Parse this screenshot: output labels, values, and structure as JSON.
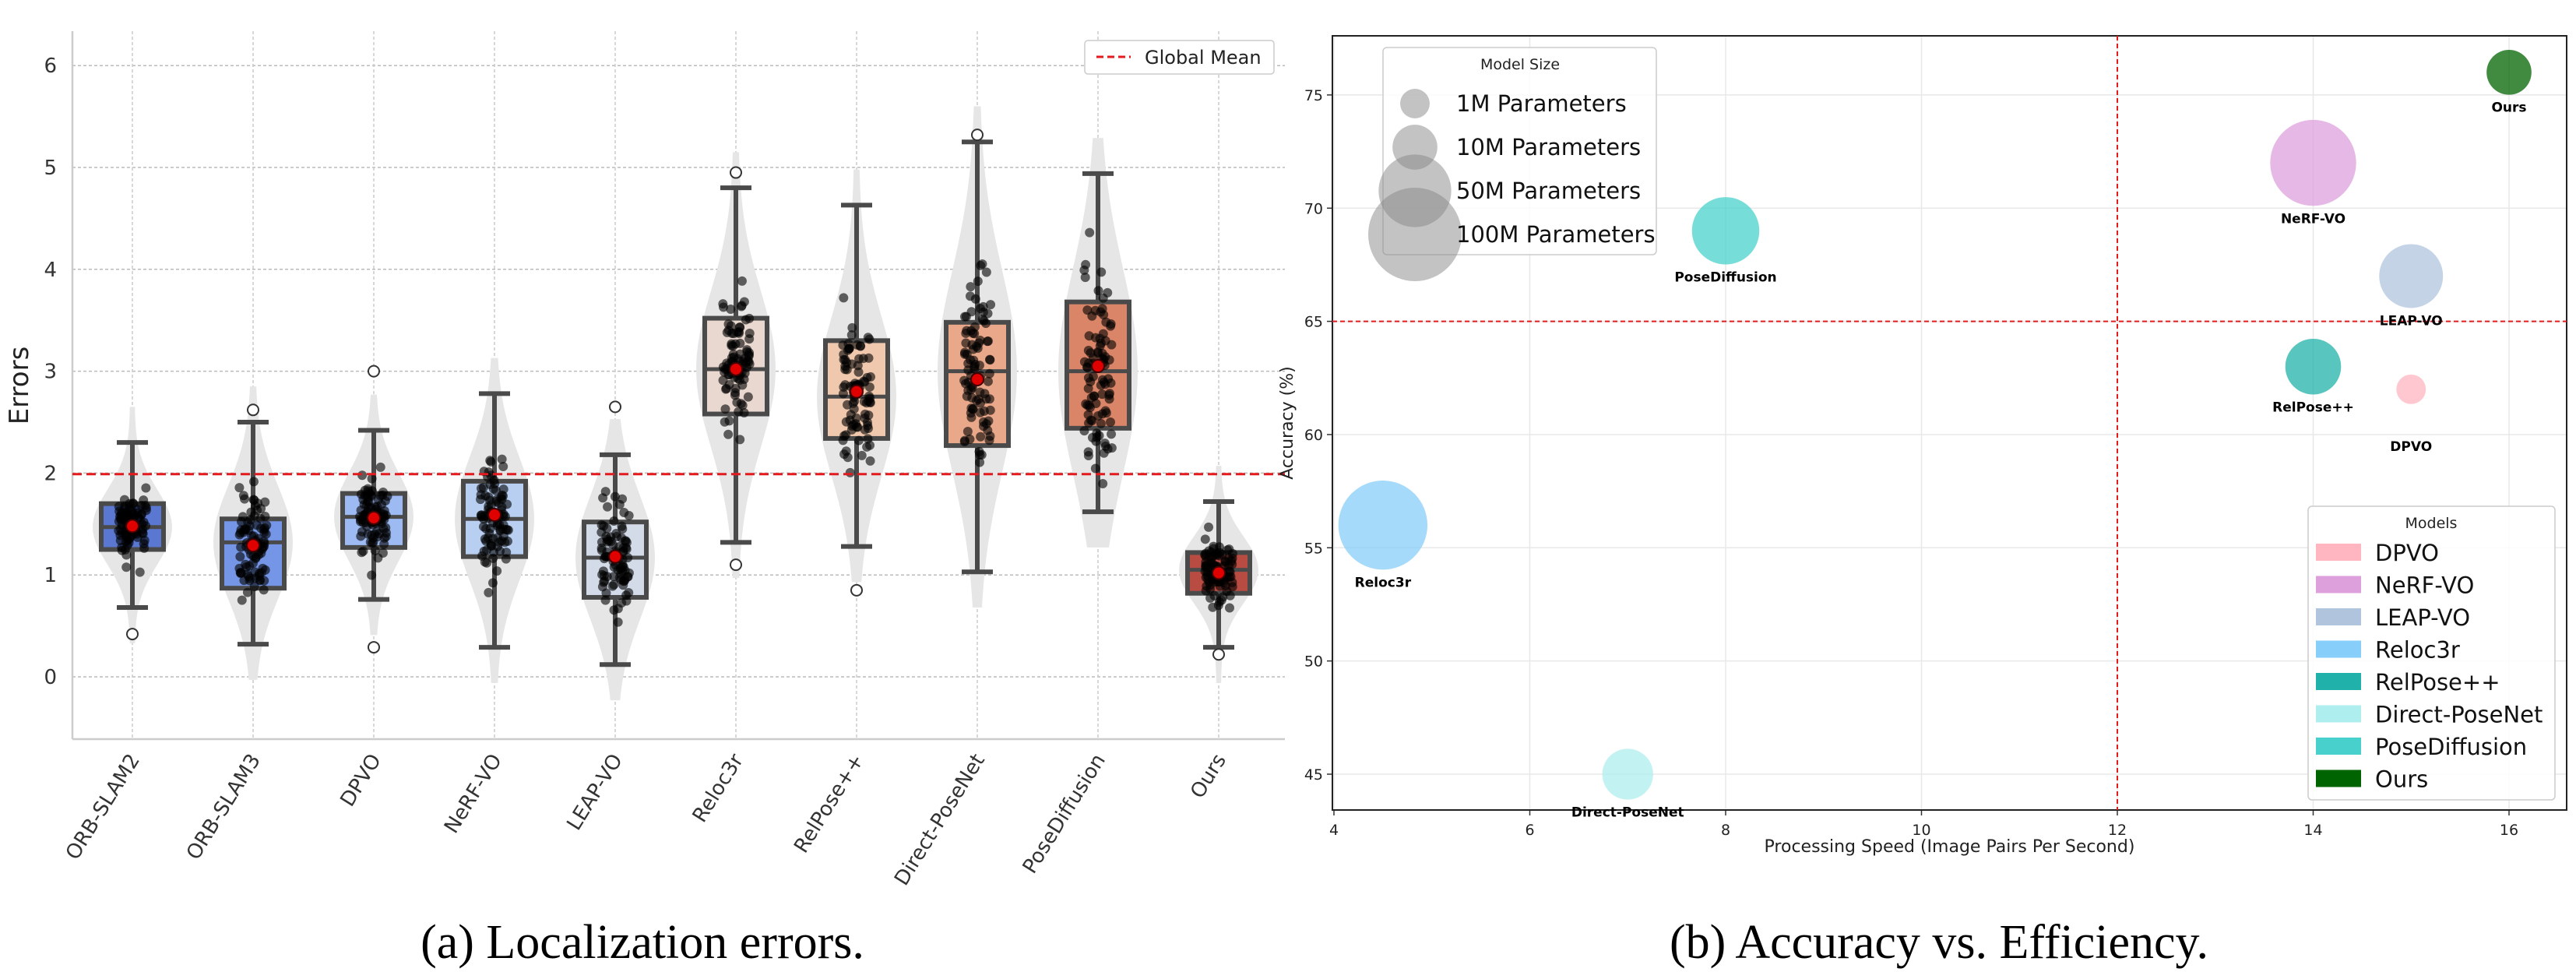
{
  "chart_data": [
    {
      "type": "box",
      "caption": "(a) Localization errors.",
      "ylabel": "Errors",
      "ylim": [
        -0.6,
        6.35
      ],
      "yticks": [
        "0",
        "1",
        "2",
        "3",
        "4",
        "5",
        "6"
      ],
      "grid": true,
      "legend": {
        "placement": "top-right",
        "entries": [
          "Global Mean"
        ]
      },
      "global_mean": 1.99,
      "global_mean_color": "#e41a1c",
      "categories": [
        "ORB-SLAM2",
        "ORB-SLAM3",
        "DPVO",
        "NeRF-VO",
        "LEAP-VO",
        "Reloc3r",
        "RelPose++",
        "Direct-PoseNet",
        "PoseDiffusion",
        "Ours"
      ],
      "colors": [
        "#5a78d2",
        "#7596e6",
        "#9dbaf2",
        "#b9cff2",
        "#d3dae8",
        "#e9d8cf",
        "#f0c8ae",
        "#eaa88a",
        "#da8468",
        "#b84c42"
      ],
      "boxes": [
        {
          "whisker_low": 0.68,
          "q1": 1.25,
          "median": 1.47,
          "q3": 1.7,
          "whisker_high": 2.3,
          "mean": 1.48,
          "outliers": [
            0.42
          ]
        },
        {
          "whisker_low": 0.32,
          "q1": 0.87,
          "median": 1.32,
          "q3": 1.55,
          "whisker_high": 2.5,
          "mean": 1.29,
          "outliers": [
            2.62
          ]
        },
        {
          "whisker_low": 0.76,
          "q1": 1.27,
          "median": 1.57,
          "q3": 1.8,
          "whisker_high": 2.42,
          "mean": 1.56,
          "outliers": [
            3.0,
            0.29
          ]
        },
        {
          "whisker_low": 0.29,
          "q1": 1.18,
          "median": 1.55,
          "q3": 1.92,
          "whisker_high": 2.78,
          "mean": 1.59,
          "outliers": []
        },
        {
          "whisker_low": 0.12,
          "q1": 0.78,
          "median": 1.17,
          "q3": 1.52,
          "whisker_high": 2.18,
          "mean": 1.18,
          "outliers": [
            2.65
          ]
        },
        {
          "whisker_low": 1.32,
          "q1": 2.58,
          "median": 3.02,
          "q3": 3.52,
          "whisker_high": 4.8,
          "mean": 3.02,
          "outliers": [
            4.95,
            1.1
          ]
        },
        {
          "whisker_low": 1.28,
          "q1": 2.34,
          "median": 2.75,
          "q3": 3.3,
          "whisker_high": 4.63,
          "mean": 2.8,
          "outliers": [
            0.85
          ]
        },
        {
          "whisker_low": 1.03,
          "q1": 2.27,
          "median": 3.0,
          "q3": 3.48,
          "whisker_high": 5.25,
          "mean": 2.92,
          "outliers": [
            5.32
          ]
        },
        {
          "whisker_low": 1.62,
          "q1": 2.44,
          "median": 3.0,
          "q3": 3.68,
          "whisker_high": 4.94,
          "mean": 3.05,
          "outliers": []
        },
        {
          "whisker_low": 0.29,
          "q1": 0.82,
          "median": 1.05,
          "q3": 1.22,
          "whisker_high": 1.72,
          "mean": 1.02,
          "outliers": [
            0.22
          ]
        }
      ]
    },
    {
      "type": "scatter",
      "caption": "(b) Accuracy vs. Efficiency.",
      "xlabel": "Processing Speed (Image Pairs Per Second)",
      "ylabel": "Accuracy (%)",
      "xlim": [
        3.98,
        16.6
      ],
      "ylim": [
        43.4,
        77.6
      ],
      "xticks": [
        "4",
        "6",
        "8",
        "10",
        "12",
        "14",
        "16"
      ],
      "yticks": [
        "45",
        "50",
        "55",
        "60",
        "65",
        "70",
        "75"
      ],
      "grid": true,
      "reference_lines": {
        "x": 12,
        "y": 65,
        "color": "#e41a1c"
      },
      "size_legend": {
        "title": "Model Size",
        "placement": "top-left",
        "entries": [
          {
            "label": "1M Parameters",
            "params_m": 1
          },
          {
            "label": "10M Parameters",
            "params_m": 10
          },
          {
            "label": "50M Parameters",
            "params_m": 50
          },
          {
            "label": "100M Parameters",
            "params_m": 100
          }
        ]
      },
      "color_legend": {
        "title": "Models",
        "placement": "lower-right"
      },
      "points": [
        {
          "name": "DPVO",
          "x": 15,
          "y": 62,
          "params_m": 1,
          "color": "#ffb6c1"
        },
        {
          "name": "NeRF-VO",
          "x": 14,
          "y": 72,
          "params_m": 80,
          "color": "#dda0dd"
        },
        {
          "name": "LEAP-VO",
          "x": 15,
          "y": 67,
          "params_m": 34,
          "color": "#b0c4de"
        },
        {
          "name": "Reloc3r",
          "x": 4.5,
          "y": 56,
          "params_m": 88,
          "color": "#87cefa"
        },
        {
          "name": "RelPose++",
          "x": 14,
          "y": 63,
          "params_m": 22,
          "color": "#20b2aa"
        },
        {
          "name": "Direct-PoseNet",
          "x": 7,
          "y": 45,
          "params_m": 16,
          "color": "#afeeee"
        },
        {
          "name": "PoseDiffusion",
          "x": 8,
          "y": 69,
          "params_m": 40,
          "color": "#48d1cc"
        },
        {
          "name": "Ours",
          "x": 16,
          "y": 76,
          "params_m": 10,
          "color": "#006400"
        }
      ]
    }
  ]
}
